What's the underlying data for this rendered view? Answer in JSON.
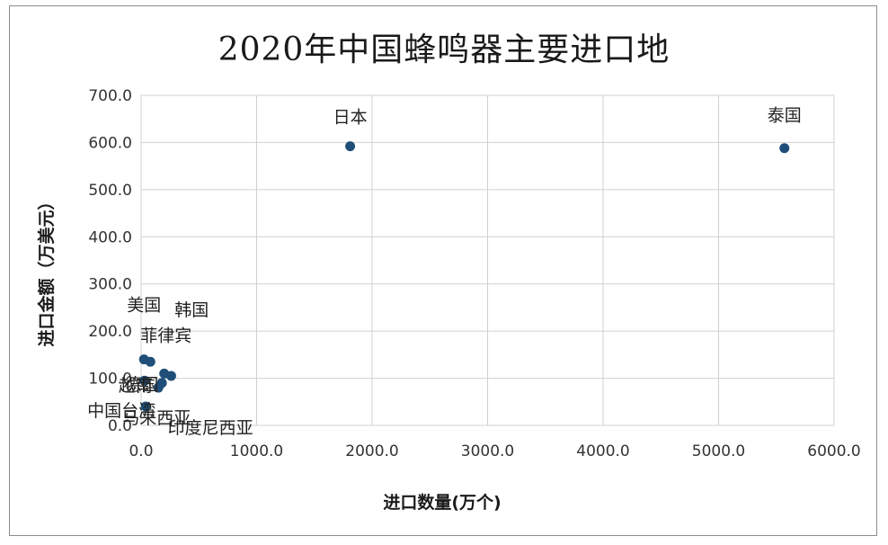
{
  "chart_data": {
    "type": "scatter",
    "title": "2020年中国蜂鸣器主要进口地",
    "xlabel": "进口数量(万个)",
    "ylabel": "进口金额（万美元）",
    "xlim": [
      0,
      6000
    ],
    "ylim": [
      0,
      700
    ],
    "x_ticks": [
      "0.0",
      "1000.0",
      "2000.0",
      "3000.0",
      "4000.0",
      "5000.0",
      "6000.0"
    ],
    "y_ticks": [
      "0.0",
      "100.0",
      "200.0",
      "300.0",
      "400.0",
      "500.0",
      "600.0",
      "700.0"
    ],
    "grid": true,
    "marker_color": "#1f4e79",
    "points": [
      {
        "label": "日本",
        "x": 1810,
        "y": 592
      },
      {
        "label": "泰国",
        "x": 5570,
        "y": 588
      },
      {
        "label": "美国",
        "x": 25,
        "y": 140
      },
      {
        "label": "韩国",
        "x": 80,
        "y": 135
      },
      {
        "label": "菲律宾",
        "x": 200,
        "y": 110
      },
      {
        "label": "越南",
        "x": 30,
        "y": 95
      },
      {
        "label": "德国",
        "x": 260,
        "y": 105
      },
      {
        "label": "中国台湾",
        "x": 180,
        "y": 90
      },
      {
        "label": "马来西亚",
        "x": 150,
        "y": 80
      },
      {
        "label": "印度尼西亚",
        "x": 40,
        "y": 40
      }
    ]
  }
}
